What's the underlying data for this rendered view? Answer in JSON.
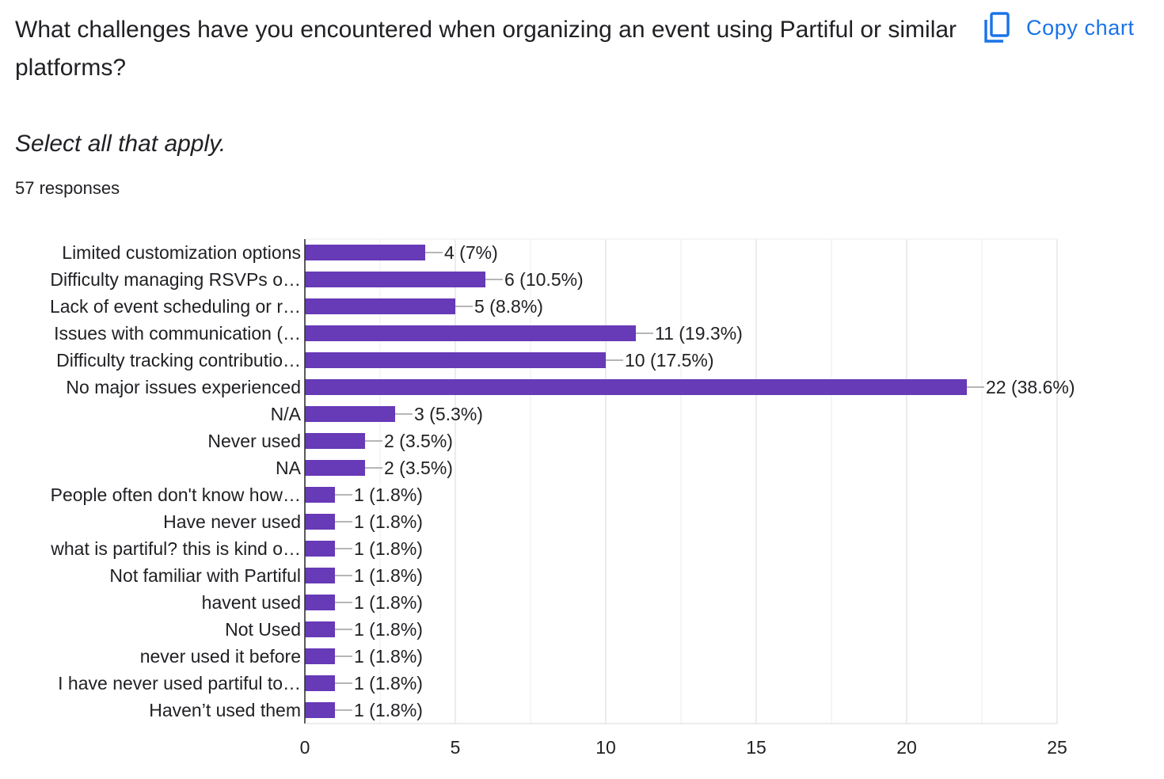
{
  "question": {
    "title": "What challenges have you encountered when organizing an event using Partiful or similar platforms?",
    "subtitle": "Select all that apply.",
    "response_count": "57 responses"
  },
  "toolbar": {
    "copy_chart_label": "Copy chart",
    "copy_icon": "copy-icon",
    "accent_color": "#1a73e8"
  },
  "chart_data": {
    "type": "bar",
    "orientation": "horizontal",
    "bar_color": "#673ab7",
    "categories": [
      "Limited customization options",
      "Difficulty managing RSVPs o…",
      "Lack of event scheduling or r…",
      "Issues with communication (…",
      "Difficulty tracking contributio…",
      "No major issues experienced",
      "N/A",
      "Never used",
      "NA",
      "People often don't know how…",
      "Have never used",
      "what is partiful? this is kind o…",
      "Not familiar with Partiful",
      "havent used",
      "Not Used",
      "never used it before",
      "I have never used partiful to…",
      "Haven’t used them"
    ],
    "values": [
      4,
      6,
      5,
      11,
      10,
      22,
      3,
      2,
      2,
      1,
      1,
      1,
      1,
      1,
      1,
      1,
      1,
      1
    ],
    "data_labels": [
      "4 (7%)",
      "6 (10.5%)",
      "5 (8.8%)",
      "11 (19.3%)",
      "10 (17.5%)",
      "22 (38.6%)",
      "3 (5.3%)",
      "2 (3.5%)",
      "2 (3.5%)",
      "1 (1.8%)",
      "1 (1.8%)",
      "1 (1.8%)",
      "1 (1.8%)",
      "1 (1.8%)",
      "1 (1.8%)",
      "1 (1.8%)",
      "1 (1.8%)",
      "1 (1.8%)"
    ],
    "xlim": [
      0,
      25
    ],
    "xticks": [
      0,
      5,
      10,
      15,
      20,
      25
    ],
    "grid": true
  }
}
